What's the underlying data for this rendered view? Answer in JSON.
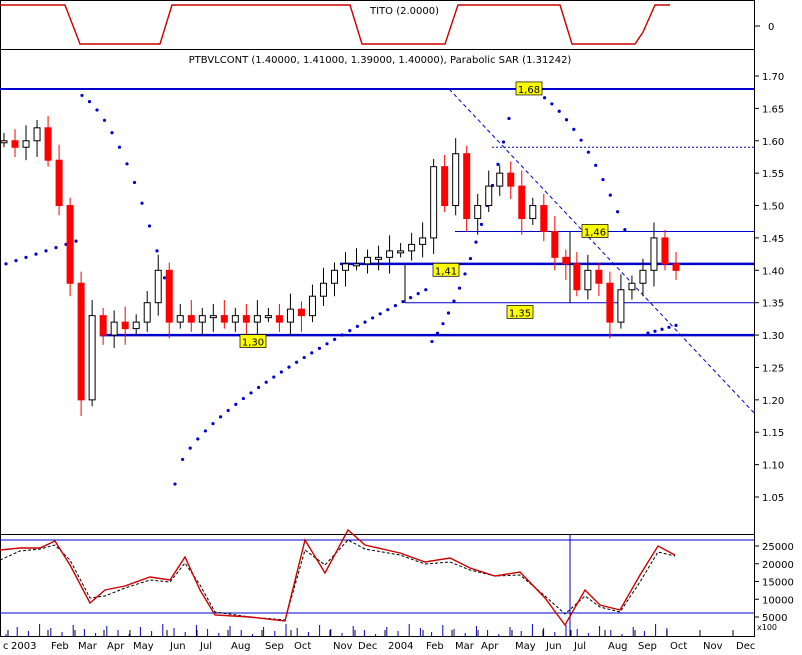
{
  "indicator_panel": {
    "label": "TITO (2.0000)",
    "tick": "0"
  },
  "main_panel": {
    "title": "PTBVLCONT (1.40000, 1.41000, 1.39000, 1.40000), Parabolic SAR (1.31242)",
    "y_ticks": [
      "1.70",
      "1.65",
      "1.60",
      "1.55",
      "1.50",
      "1.45",
      "1.40",
      "1.35",
      "1.30",
      "1.25",
      "1.20",
      "1.15",
      "1.10",
      "1.05"
    ],
    "level_labels": [
      "1,68",
      "1,46",
      "1,41",
      "1,35",
      "1,30"
    ]
  },
  "bottom_panel": {
    "y_ticks": [
      "25000",
      "20000",
      "15000",
      "10000",
      "5000"
    ],
    "unit_label": "x100"
  },
  "x_axis": {
    "labels": [
      "c",
      "2003",
      "Feb",
      "Mar",
      "Apr",
      "May",
      "Jun",
      "Jul",
      "Aug",
      "Sep",
      "Oct",
      "Nov",
      "Dec",
      "2004",
      "Feb",
      "Mar",
      "Apr",
      "May",
      "Jun",
      "Jul",
      "Aug",
      "Sep",
      "Oct",
      "Nov",
      "Dec"
    ]
  },
  "colors": {
    "up_candle": "#ffffff",
    "down_candle": "#ff0000",
    "sar_dots": "#0000cc",
    "level_lines": "#0000cc",
    "indicator_line": "#cc0000",
    "label_fill": "#ffff00"
  },
  "chart_data": {
    "type": "candlestick",
    "title": "PTBVLCONT (1.40000, 1.41000, 1.39000, 1.40000), Parabolic SAR (1.31242)",
    "ylim": [
      1.02,
      1.72
    ],
    "x_labels": [
      "c",
      "2003",
      "Feb",
      "Mar",
      "Apr",
      "May",
      "Jun",
      "Jul",
      "Aug",
      "Sep",
      "Oct",
      "Nov",
      "Dec",
      "2004",
      "Feb",
      "Mar",
      "Apr",
      "May",
      "Jun",
      "Jul",
      "Aug",
      "Sep",
      "Oct",
      "Nov",
      "Dec"
    ],
    "horizontal_levels": [
      1.68,
      1.46,
      1.41,
      1.35,
      1.3
    ],
    "last_values": {
      "open": 1.4,
      "high": 1.41,
      "low": 1.39,
      "close": 1.4,
      "parabolic_sar": 1.31242
    },
    "close_series": [
      1.6,
      1.59,
      1.6,
      1.62,
      1.57,
      1.5,
      1.38,
      1.2,
      1.33,
      1.3,
      1.32,
      1.31,
      1.32,
      1.35,
      1.4,
      1.32,
      1.33,
      1.32,
      1.33,
      1.33,
      1.32,
      1.33,
      1.32,
      1.33,
      1.33,
      1.32,
      1.34,
      1.33,
      1.36,
      1.38,
      1.4,
      1.41,
      1.41,
      1.42,
      1.42,
      1.43,
      1.43,
      1.44,
      1.45,
      1.56,
      1.5,
      1.58,
      1.48,
      1.5,
      1.53,
      1.55,
      1.53,
      1.48,
      1.5,
      1.46,
      1.42,
      1.41,
      1.37,
      1.4,
      1.38,
      1.32,
      1.37,
      1.38,
      1.4,
      1.45,
      1.41,
      1.4
    ],
    "volume_indicator_ticks": [
      25000,
      20000,
      15000,
      10000,
      5000
    ]
  }
}
